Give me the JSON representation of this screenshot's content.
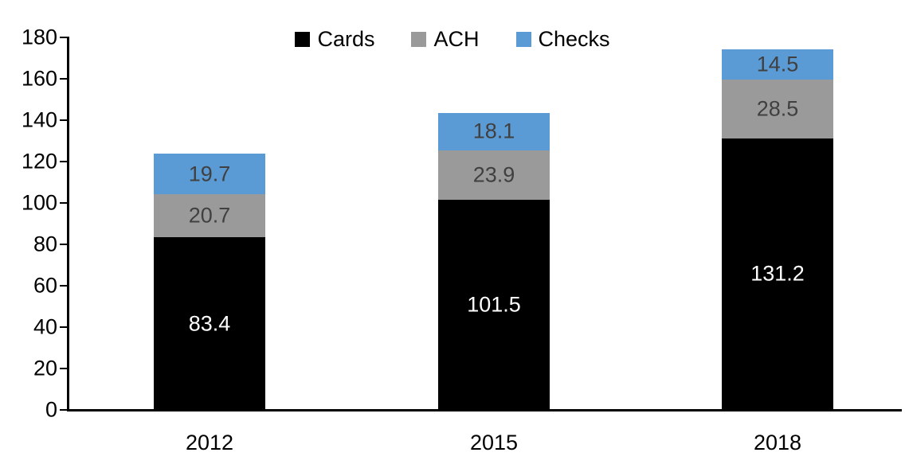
{
  "chart_data": {
    "type": "bar",
    "stacked": true,
    "title": "",
    "categories": [
      "2012",
      "2015",
      "2018"
    ],
    "series": [
      {
        "name": "Cards",
        "color": "#000000",
        "label_color": "#FFFFFF",
        "values": [
          83.4,
          101.5,
          131.2
        ]
      },
      {
        "name": "ACH",
        "color": "#9A9A9A",
        "label_color": "#404040",
        "values": [
          20.7,
          23.9,
          28.5
        ]
      },
      {
        "name": "Checks",
        "color": "#5B9BD5",
        "label_color": "#404040",
        "values": [
          19.7,
          18.1,
          14.5
        ]
      }
    ],
    "totals": [
      123.8,
      143.5,
      174.2
    ],
    "ylim": [
      0,
      180
    ],
    "ytick_step": 20,
    "yticks": [
      0,
      20,
      40,
      60,
      80,
      100,
      120,
      140,
      160,
      180
    ],
    "grid": false,
    "legend_position": "top",
    "data_labels": true,
    "label_decimals": 1
  },
  "colors": {
    "background": "#FFFFFF",
    "axis": "#000000",
    "tick_text": "#000000"
  }
}
